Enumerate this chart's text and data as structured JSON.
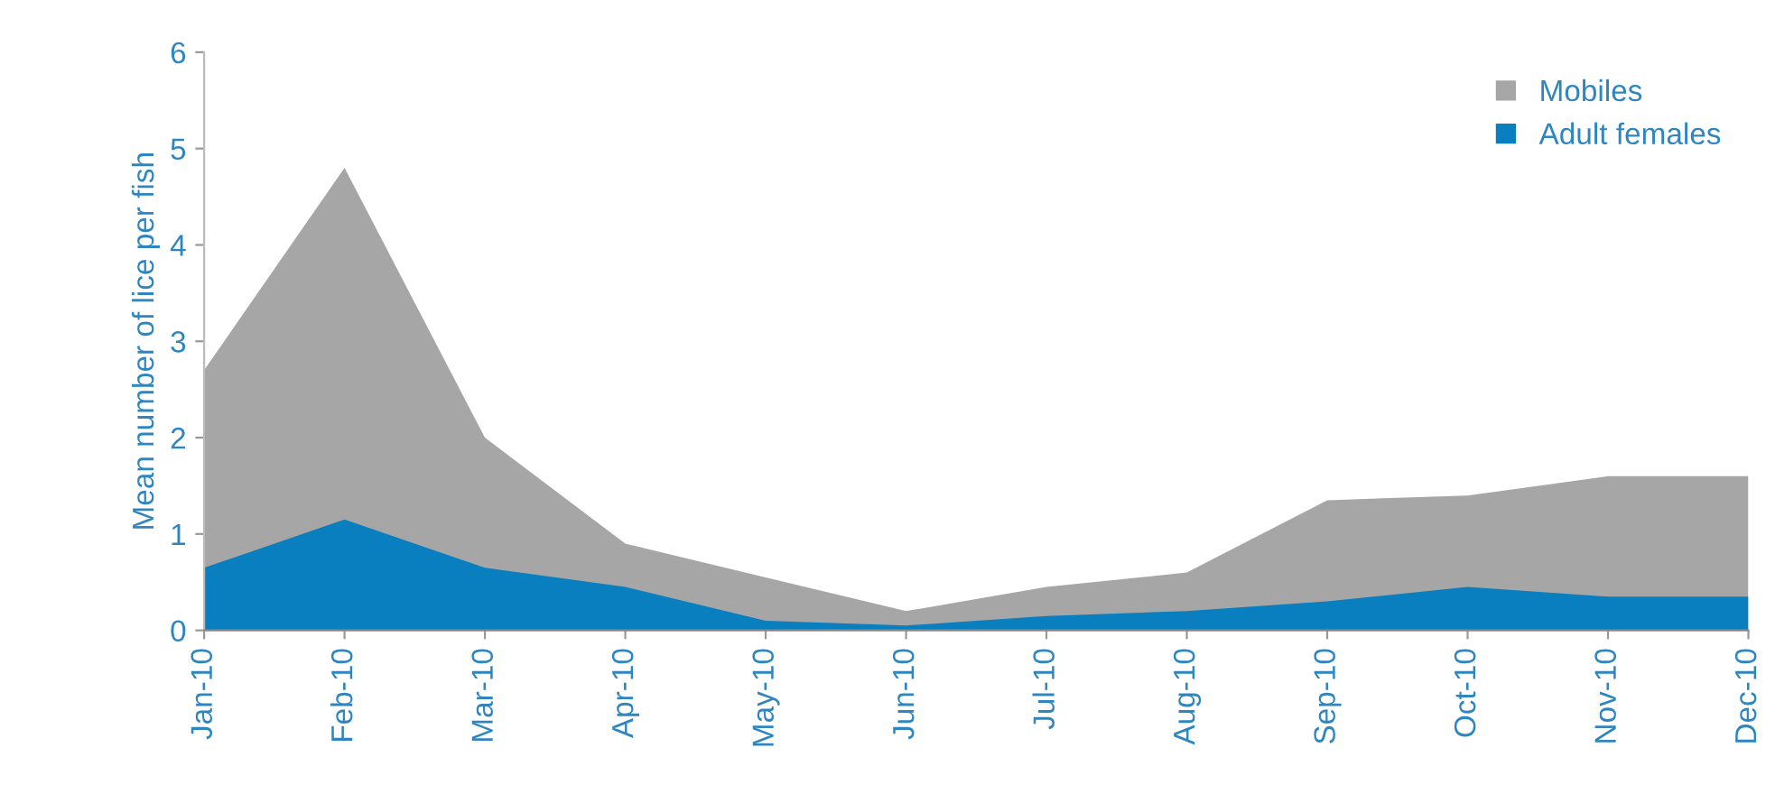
{
  "chart_data": {
    "type": "area",
    "ylabel": "Mean number of lice per fish",
    "categories": [
      "Jan-10",
      "Feb-10",
      "Mar-10",
      "Apr-10",
      "May-10",
      "Jun-10",
      "Jul-10",
      "Aug-10",
      "Sep-10",
      "Oct-10",
      "Nov-10",
      "Dec-10"
    ],
    "series": [
      {
        "name": "Mobiles",
        "color": "#a6a6a6",
        "values": [
          2.7,
          4.8,
          2.0,
          0.9,
          0.55,
          0.2,
          0.45,
          0.6,
          1.35,
          1.4,
          1.6,
          1.6
        ]
      },
      {
        "name": "Adult females",
        "color": "#0a7fc0",
        "values": [
          0.65,
          1.15,
          0.65,
          0.45,
          0.1,
          0.05,
          0.15,
          0.2,
          0.3,
          0.45,
          0.35,
          0.35
        ]
      }
    ],
    "ylim": [
      0,
      6
    ],
    "yticks": [
      0,
      1,
      2,
      3,
      4,
      5,
      6
    ],
    "grid": false,
    "legend": "top right"
  }
}
